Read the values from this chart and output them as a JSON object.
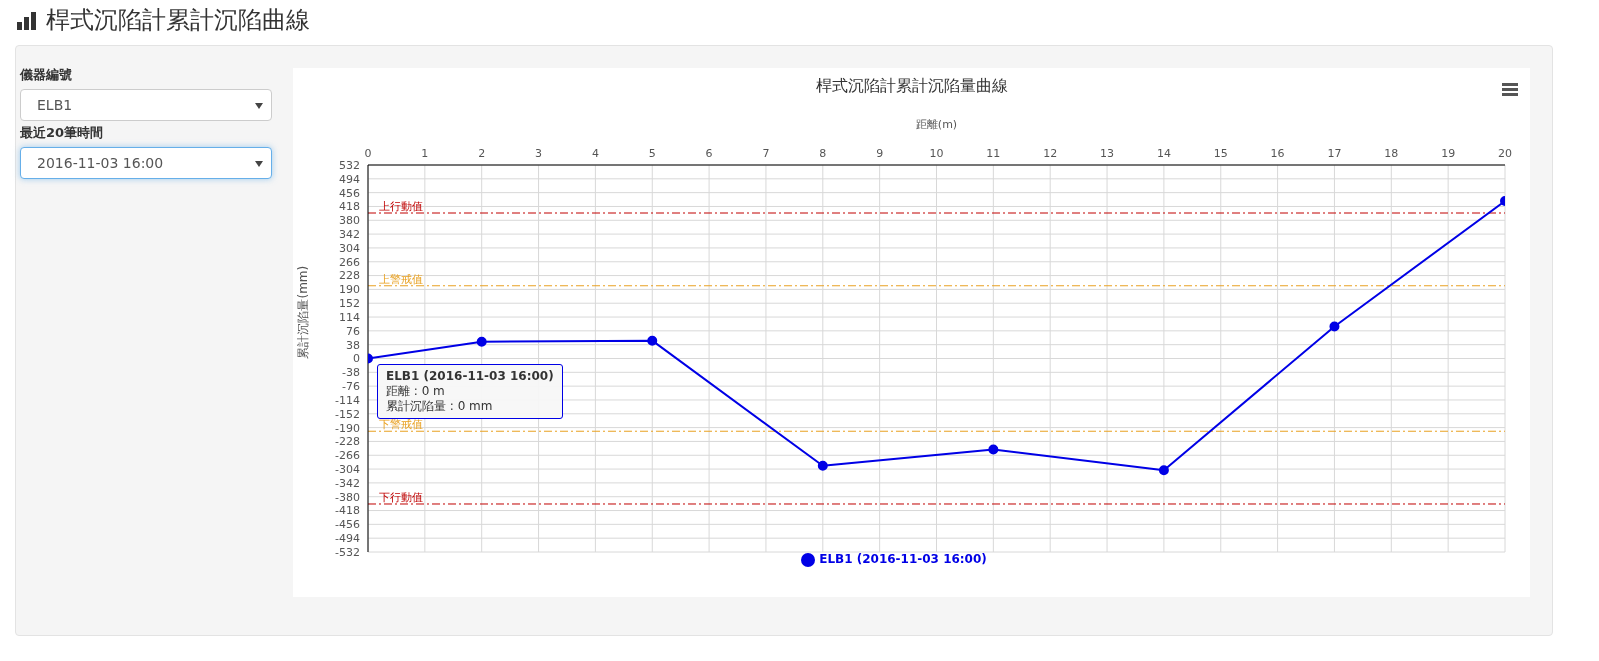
{
  "chart_data": {
    "type": "line",
    "title": "桿式沉陷計累計沉陷量曲線",
    "xlabel": "距離(m)",
    "ylabel": "累計沉陷量(mm)",
    "x": [
      0,
      2,
      5,
      8,
      11,
      14,
      17,
      20
    ],
    "series": [
      {
        "name": "ELB1 (2016-11-03 16:00)",
        "color": "#0000e6",
        "values": [
          0,
          46,
          49,
          -295,
          -250,
          -307,
          88,
          433
        ]
      }
    ],
    "xlim": [
      0,
      20
    ],
    "xticks": [
      0,
      1,
      2,
      3,
      4,
      5,
      6,
      7,
      8,
      9,
      10,
      11,
      12,
      13,
      14,
      15,
      16,
      17,
      18,
      19,
      20
    ],
    "ylim": [
      -532,
      532
    ],
    "yticks": [
      -532,
      -494,
      -456,
      -418,
      -380,
      -342,
      -304,
      -266,
      -228,
      -190,
      -152,
      -114,
      -76,
      -38,
      0,
      38,
      76,
      114,
      152,
      190,
      228,
      266,
      304,
      342,
      380,
      418,
      456,
      494,
      532
    ],
    "ref_lines": [
      {
        "axis": "y",
        "value": 400,
        "label": "上行動值",
        "color": "#c00000",
        "line_style": "dashdot"
      },
      {
        "axis": "y",
        "value": 200,
        "label": "上警戒值",
        "color": "#e8a020",
        "line_style": "dashdot"
      },
      {
        "axis": "y",
        "value": -200,
        "label": "下警戒值",
        "color": "#e8a020",
        "line_style": "dashdot"
      },
      {
        "axis": "y",
        "value": -400,
        "label": "下行動值",
        "color": "#c00000",
        "line_style": "dashdot"
      }
    ],
    "annotations": [
      "桿式沉陷計累計沉陷曲線",
      "儀器編號",
      "ELB1",
      "最近20筆時間",
      "2016-11-03 16:00",
      "ELB1 (2016-11-03 16:00)",
      "距離 : 0 m",
      "累計沉陷量 : 0 mm"
    ],
    "grid": true,
    "legend": "bottom",
    "marker": "circle",
    "line_style": "solid"
  }
}
